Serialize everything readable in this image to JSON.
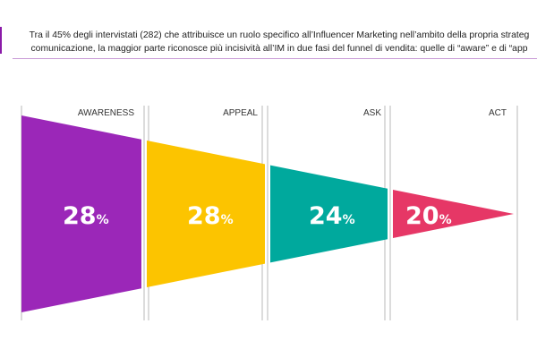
{
  "header": {
    "line1": "Tra il 45% degli intervistati (282) che attribuisce un ruolo specifico all’Influencer Marketing nell’ambito della propria strateg",
    "line2": "comunicazione, la maggior parte riconosce più incisività all’IM in due fasi del funnel di vendita: quelle di “aware” e di “app"
  },
  "colors": {
    "accent": "#8a1aa8",
    "rule": "#c99ad6"
  },
  "chart_data": {
    "type": "funnel",
    "stages": [
      {
        "name": "AWARENESS",
        "value": 28,
        "label": "28",
        "unit": "%",
        "color": "#9b27b8"
      },
      {
        "name": "APPEAL",
        "value": 28,
        "label": "28",
        "unit": "%",
        "color": "#fcc400"
      },
      {
        "name": "ASK",
        "value": 24,
        "label": "24",
        "unit": "%",
        "color": "#00a99d"
      },
      {
        "name": "ACT",
        "value": 20,
        "label": "20",
        "unit": "%",
        "color": "#e63766"
      }
    ]
  }
}
